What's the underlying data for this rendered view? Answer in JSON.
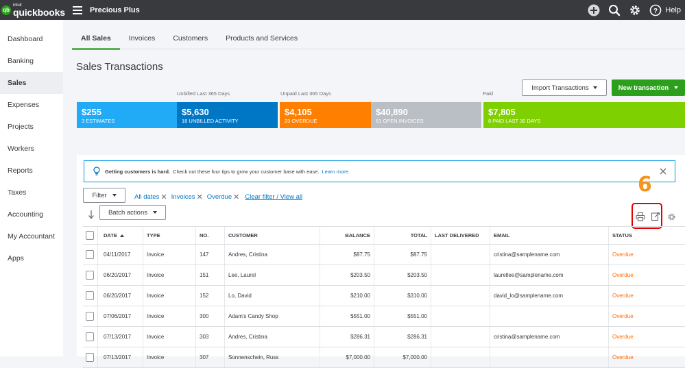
{
  "topbar": {
    "logo_small": "intuit",
    "logo_name": "quickbooks",
    "logo_badge": "qb",
    "company": "Precious Plus",
    "help_label": "Help"
  },
  "sidebar": {
    "items": [
      {
        "label": "Dashboard"
      },
      {
        "label": "Banking"
      },
      {
        "label": "Sales"
      },
      {
        "label": "Expenses"
      },
      {
        "label": "Projects"
      },
      {
        "label": "Workers"
      },
      {
        "label": "Reports"
      },
      {
        "label": "Taxes"
      },
      {
        "label": "Accounting"
      },
      {
        "label": "My Accountant"
      },
      {
        "label": "Apps"
      }
    ],
    "active": "Sales"
  },
  "tabs": [
    {
      "label": "All Sales"
    },
    {
      "label": "Invoices"
    },
    {
      "label": "Customers"
    },
    {
      "label": "Products and Services"
    }
  ],
  "page": {
    "title": "Sales Transactions",
    "import_label": "Import Transactions",
    "new_tx_label": "New transaction"
  },
  "stats": {
    "unbilled_label": "Unbilled Last 365 Days",
    "unpaid_label": "Unpaid Last 365 Days",
    "paid_label": "Paid",
    "items": [
      {
        "amount": "$255",
        "sub": "3 ESTIMATES",
        "color": "#21abf6"
      },
      {
        "amount": "$5,630",
        "sub": "18 UNBILLED ACTIVITY",
        "color": "#0077c5"
      },
      {
        "amount": "$4,105",
        "sub": "23 OVERDUE",
        "color": "#ff8000"
      },
      {
        "amount": "$40,890",
        "sub": "61 OPEN INVOICES",
        "color": "#babec5"
      },
      {
        "amount": "$7,805",
        "sub": "8 PAID LAST 30 DAYS",
        "color": "#7fd000"
      }
    ]
  },
  "tip": {
    "bold": "Getting customers is hard.",
    "text": "Check out these four tips to grow your customer base with ease.",
    "link": "Learn more."
  },
  "filters": {
    "filter_label": "Filter",
    "chips": [
      "All dates",
      "Invoices",
      "Overdue"
    ],
    "clear_label": "Clear filter / View all",
    "batch_label": "Batch actions"
  },
  "annotation": {
    "number": "6"
  },
  "table": {
    "headers": {
      "date": "DATE",
      "type": "TYPE",
      "no": "NO.",
      "customer": "CUSTOMER",
      "balance": "BALANCE",
      "total": "TOTAL",
      "last_delivered": "LAST DELIVERED",
      "email": "EMAIL",
      "status": "STATUS"
    },
    "rows": [
      {
        "date": "04/11/2017",
        "type": "Invoice",
        "no": "147",
        "customer": "Andres, Cristina",
        "balance": "$87.75",
        "total": "$87.75",
        "last_delivered": "",
        "email": "cristina@samplename.com",
        "status": "Overdue"
      },
      {
        "date": "06/20/2017",
        "type": "Invoice",
        "no": "151",
        "customer": "Lee, Laurel",
        "balance": "$203.50",
        "total": "$203.50",
        "last_delivered": "",
        "email": "laurellee@samplename.com",
        "status": "Overdue"
      },
      {
        "date": "06/20/2017",
        "type": "Invoice",
        "no": "152",
        "customer": "Lo, David",
        "balance": "$210.00",
        "total": "$310.00",
        "last_delivered": "",
        "email": "david_lo@samplename.com",
        "status": "Overdue"
      },
      {
        "date": "07/06/2017",
        "type": "Invoice",
        "no": "300",
        "customer": "Adam's Candy Shop",
        "balance": "$551.00",
        "total": "$551.00",
        "last_delivered": "",
        "email": "",
        "status": "Overdue"
      },
      {
        "date": "07/13/2017",
        "type": "Invoice",
        "no": "303",
        "customer": "Andres, Cristina",
        "balance": "$286.31",
        "total": "$286.31",
        "last_delivered": "",
        "email": "cristina@samplename.com",
        "status": "Overdue"
      },
      {
        "date": "07/13/2017",
        "type": "Invoice",
        "no": "307",
        "customer": "Sonnenschein, Russ",
        "balance": "$7,000.00",
        "total": "$7,000.00",
        "last_delivered": "",
        "email": "",
        "status": "Overdue"
      }
    ]
  }
}
